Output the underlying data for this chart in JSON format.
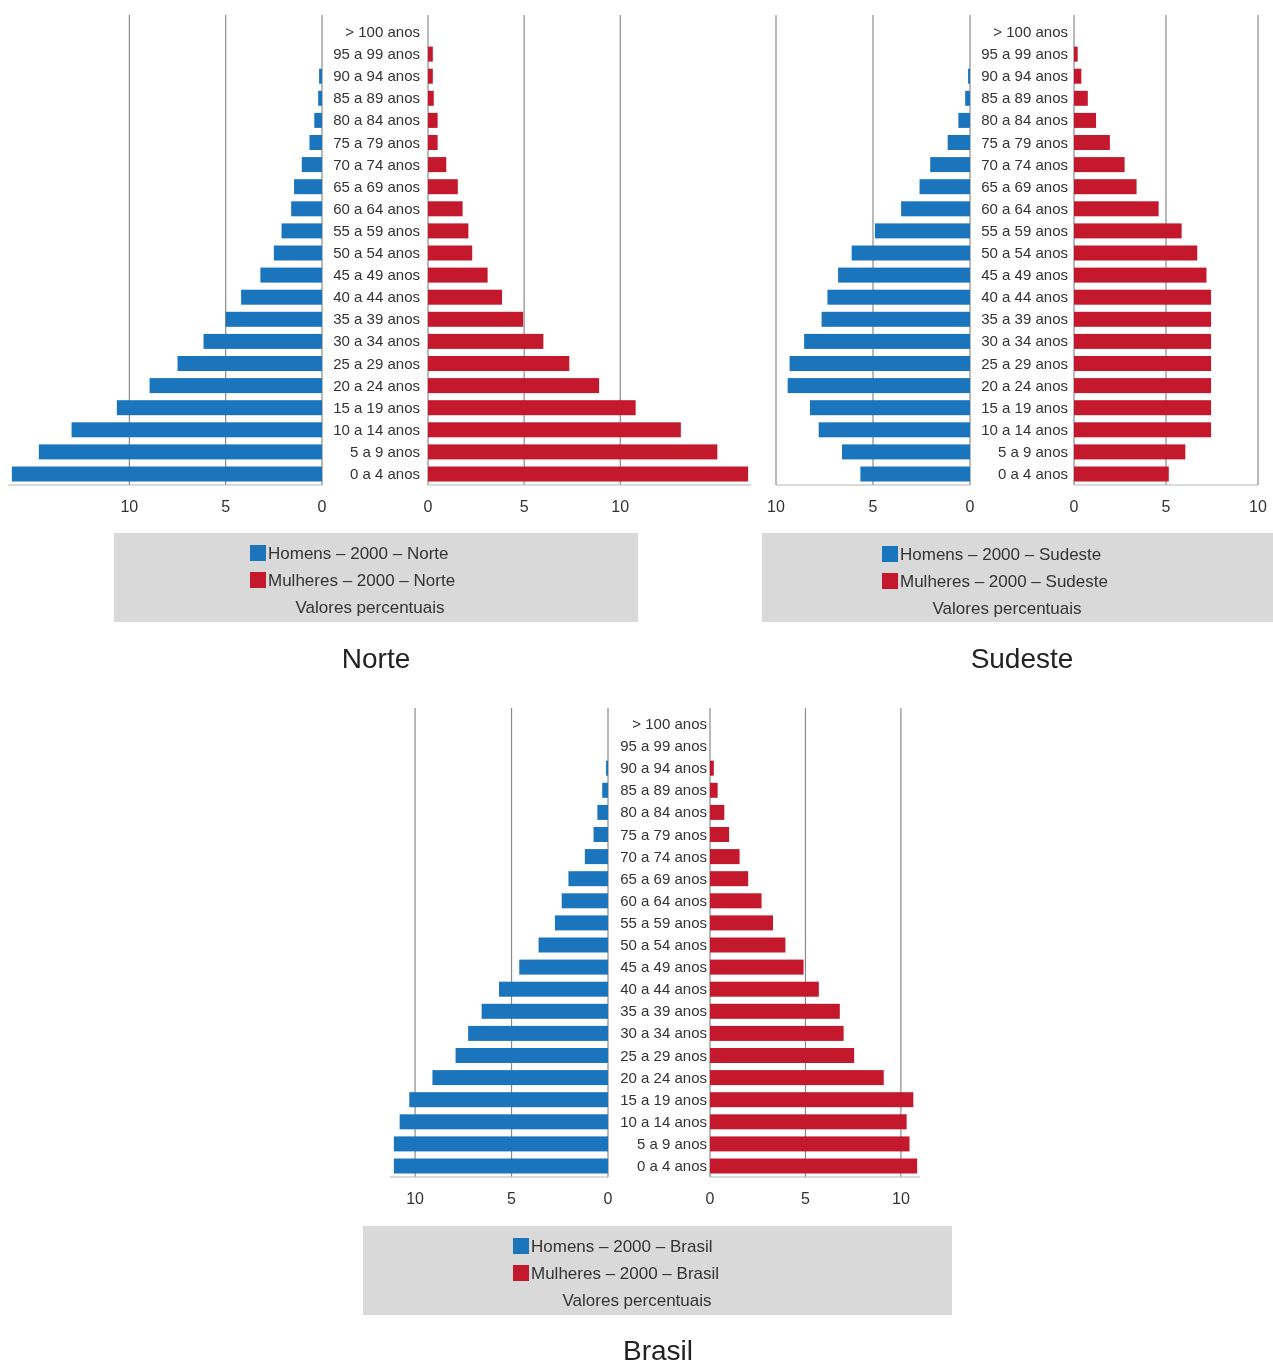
{
  "chart_data": [
    {
      "type": "bar",
      "orientation": "horizontal",
      "title": "Norte",
      "categories": [
        "> 100 anos",
        "95 a 99 anos",
        "90 a 94 anos",
        "85 a 89 anos",
        "80 a 84 anos",
        "75 a 79 anos",
        "70 a 74 anos",
        "65 a 69 anos",
        "60 a 64 anos",
        "55 a 59 anos",
        "50 a 54 anos",
        "45 a 49 anos",
        "40 a 44 anos",
        "35 a 39 anos",
        "30 a 34 anos",
        "25 a 29 anos",
        "20 a 24 anos",
        "15 a 19 anos",
        "10 a 14 anos",
        "5 a 9 anos",
        "0 a 4 anos"
      ],
      "series": [
        {
          "name": "Homens – 2000 – Norte",
          "color": "#1a75bc",
          "values": [
            0,
            0,
            0.15,
            0.2,
            0.4,
            0.65,
            1.05,
            1.45,
            1.6,
            2.1,
            2.5,
            3.2,
            4.2,
            5.0,
            6.15,
            7.5,
            8.95,
            10.65,
            13.0,
            14.7,
            16.1
          ]
        }
      ],
      "xlim": [
        16.3,
        0
      ],
      "xticks": [
        10,
        5,
        0
      ],
      "grid": "x",
      "legend": "bottom"
    },
    {
      "type": "bar",
      "orientation": "horizontal",
      "annotations": [
        "Valores percentuais"
      ],
      "categories": [
        null,
        null,
        null,
        null,
        null,
        null,
        null,
        null,
        null,
        null,
        null,
        null,
        null,
        null,
        null,
        null,
        null,
        null,
        null,
        null,
        null
      ],
      "series": [
        {
          "name": "Mulheres – 2000 – Norte",
          "color": "#c4182c",
          "values": [
            0,
            0.25,
            0.25,
            0.3,
            0.5,
            0.5,
            0.95,
            1.55,
            1.8,
            2.1,
            2.3,
            3.1,
            3.85,
            4.95,
            6.0,
            7.35,
            8.9,
            10.8,
            13.15,
            15.05,
            16.65
          ]
        }
      ],
      "xlim": [
        0,
        16.8
      ],
      "xticks": [
        0,
        5,
        10
      ],
      "grid": "x",
      "legend": "bottom"
    },
    {
      "type": "bar",
      "orientation": "horizontal",
      "title": "Sudeste",
      "categories": [
        "> 100 anos",
        "95 a 99 anos",
        "90 a 94 anos",
        "85 a 89 anos",
        "80 a 84 anos",
        "75 a 79 anos",
        "70 a 74 anos",
        "65 a 69 anos",
        "60 a 64 anos",
        "55 a 59 anos",
        "50 a 54 anos",
        "45 a 49 anos",
        "40 a 44 anos",
        "35 a 39 anos",
        "30 a 34 anos",
        "25 a 29 anos",
        "20 a 24 anos",
        "15 a 19 anos",
        "10 a 14 anos",
        "5 a 9 anos",
        "0 a 4 anos"
      ],
      "series": [
        {
          "name": "Homens – 2000 – Sudeste",
          "color": "#1a75bc",
          "values": [
            0,
            0,
            0.1,
            0.25,
            0.6,
            1.15,
            2.05,
            2.6,
            3.55,
            4.9,
            6.1,
            6.8,
            7.35,
            7.65,
            8.55,
            9.3,
            9.4,
            8.25,
            7.8,
            6.6,
            5.65
          ]
        }
      ],
      "xlim": [
        10,
        0
      ],
      "xticks": [
        10,
        5,
        0
      ],
      "grid": "x",
      "legend": "bottom"
    },
    {
      "type": "bar",
      "orientation": "horizontal",
      "annotations": [
        "Valores percentuais"
      ],
      "categories": [
        null,
        null,
        null,
        null,
        null,
        null,
        null,
        null,
        null,
        null,
        null,
        null,
        null,
        null,
        null,
        null,
        null,
        null,
        null,
        null,
        null
      ],
      "series": [
        {
          "name": "Mulheres – 2000 – Sudeste",
          "color": "#c4182c",
          "values": [
            0,
            0.2,
            0.4,
            0.75,
            1.2,
            1.95,
            2.75,
            3.4,
            4.6,
            5.85,
            6.7,
            7.2,
            7.45,
            7.45,
            7.45,
            7.45,
            7.45,
            7.45,
            7.45,
            6.05,
            5.15
          ]
        }
      ],
      "xlim": [
        0,
        10
      ],
      "xticks": [
        0,
        5,
        10
      ],
      "grid": "x",
      "legend": "bottom"
    },
    {
      "type": "bar",
      "orientation": "horizontal",
      "title": "Brasil",
      "categories": [
        "> 100 anos",
        "95 a 99 anos",
        "90 a 94 anos",
        "85 a 89 anos",
        "80 a 84 anos",
        "75 a 79 anos",
        "70 a 74 anos",
        "65 a 69 anos",
        "60 a 64 anos",
        "55 a 59 anos",
        "50 a 54 anos",
        "45 a 49 anos",
        "40 a 44 anos",
        "35 a 39 anos",
        "30 a 34 anos",
        "25 a 29 anos",
        "20 a 24 anos",
        "15 a 19 anos",
        "10 a 14 anos",
        "5 a 9 anos",
        "0 a 4 anos"
      ],
      "series": [
        {
          "name": "Homens – 2000 – Brasil",
          "color": "#1a75bc",
          "values": [
            0,
            0,
            0.1,
            0.3,
            0.55,
            0.75,
            1.2,
            2.05,
            2.4,
            2.75,
            3.6,
            4.6,
            5.65,
            6.55,
            7.25,
            7.9,
            9.1,
            10.3,
            10.8,
            11.1,
            11.1
          ]
        }
      ],
      "xlim": [
        11.3,
        0
      ],
      "xticks": [
        10,
        5,
        0
      ],
      "grid": "x",
      "legend": "bottom"
    },
    {
      "type": "bar",
      "orientation": "horizontal",
      "annotations": [
        "Valores percentuais"
      ],
      "categories": [
        null,
        null,
        null,
        null,
        null,
        null,
        null,
        null,
        null,
        null,
        null,
        null,
        null,
        null,
        null,
        null,
        null,
        null,
        null,
        null,
        null
      ],
      "series": [
        {
          "name": "Mulheres – 2000 – Brasil",
          "color": "#c4182c",
          "values": [
            0,
            0,
            0.2,
            0.4,
            0.75,
            1.0,
            1.55,
            2.0,
            2.7,
            3.3,
            3.95,
            4.9,
            5.7,
            6.8,
            7.0,
            7.55,
            9.1,
            10.65,
            10.3,
            10.45,
            10.85
          ]
        }
      ],
      "xlim": [
        0,
        11
      ],
      "xticks": [
        0,
        5,
        10
      ],
      "grid": "x",
      "legend": "bottom"
    }
  ]
}
